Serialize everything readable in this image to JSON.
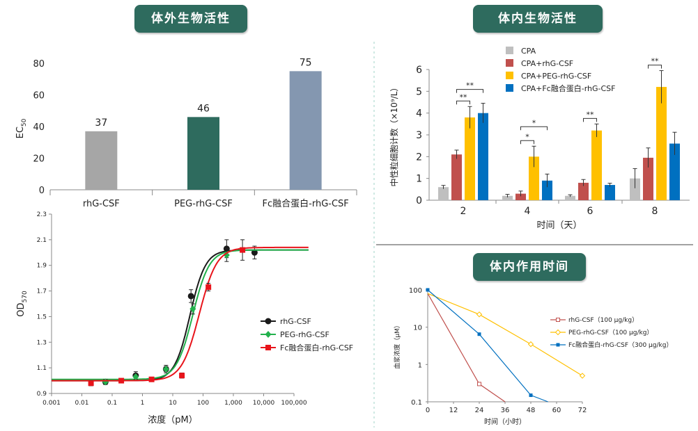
{
  "banners": {
    "in_vitro": "体外生物活性",
    "in_vivo": "体内生物活性",
    "duration": "体内作用时间"
  },
  "colors": {
    "banner": "#2e6b5e",
    "rhG": "#a6a6a6",
    "peg": "#2e6b5e",
    "fc": "#8497b0",
    "cpa_gray": "#bfbfbf",
    "cpa_red": "#c0504d",
    "cpa_yellow": "#ffc000",
    "cpa_blue": "#0070c0"
  },
  "chart_data": [
    {
      "id": "ec50",
      "type": "bar",
      "ylabel_main": "EC",
      "ylabel_sub": "50",
      "ylim": [
        0,
        80
      ],
      "yticks": [
        "0",
        "20",
        "40",
        "60",
        "80"
      ],
      "categories": [
        "rhG-CSF",
        "PEG-rhG-CSF",
        "Fc融合蛋白-rhG-CSF"
      ],
      "values": [
        37,
        46,
        75
      ],
      "value_labels": [
        "37",
        "46",
        "75"
      ]
    },
    {
      "id": "od570",
      "type": "scatter",
      "ylabel_main": "OD",
      "ylabel_sub": "570",
      "xlabel": "浓度（pM）",
      "xscale": "log",
      "xlim": [
        0.001,
        100000
      ],
      "xticks": [
        "0.001",
        "0.01",
        "0.1",
        "1",
        "10",
        "100",
        "1,000",
        "10,000",
        "100,000"
      ],
      "ylim": [
        0.9,
        2.3
      ],
      "yticks": [
        "0.9",
        "1.1",
        "1.3",
        "1.5",
        "1.7",
        "1.9",
        "2.1",
        "2.3"
      ],
      "series": [
        {
          "name": "rhG-CSF",
          "x": [
            0.06,
            0.6,
            6,
            40,
            600,
            5000
          ],
          "y": [
            0.99,
            1.04,
            1.09,
            1.66,
            2.03,
            2.0
          ],
          "err": [
            0.02,
            0.03,
            0.03,
            0.05,
            0.07,
            0.05
          ],
          "fit": {
            "bottom": 1.0,
            "top": 2.02,
            "ec50": 37,
            "hill": 1.7
          }
        },
        {
          "name": "PEG-rhG-CSF",
          "x": [
            0.06,
            0.6,
            6,
            46,
            600
          ],
          "y": [
            0.99,
            1.03,
            1.09,
            1.56,
            1.98
          ],
          "err": [
            0.02,
            0.02,
            0.02,
            0.04,
            0.05
          ],
          "fit": {
            "bottom": 1.01,
            "top": 2.02,
            "ec50": 46,
            "hill": 1.6
          }
        },
        {
          "name": "Fc融合蛋白-rhG-CSF",
          "x": [
            0.02,
            0.2,
            2,
            20,
            150,
            2000
          ],
          "y": [
            0.98,
            1.0,
            1.01,
            1.04,
            1.73,
            2.02
          ],
          "err": [
            0.02,
            0.01,
            0.01,
            0.02,
            0.03,
            0.08
          ],
          "fit": {
            "bottom": 1.0,
            "top": 2.04,
            "ec50": 75,
            "hill": 1.5
          }
        }
      ]
    },
    {
      "id": "neutrophil",
      "type": "bar",
      "ylabel": "中性粒细胞计数（×10⁹/L）",
      "xlabel": "时间（天）",
      "ylim": [
        0,
        6
      ],
      "yticks": [
        "0",
        "1",
        "2",
        "3",
        "4",
        "5",
        "6"
      ],
      "categories": [
        "2",
        "4",
        "6",
        "8"
      ],
      "series": [
        {
          "name": "CPA",
          "values": [
            0.6,
            0.2,
            0.2,
            1.0
          ],
          "err": [
            0.08,
            0.07,
            0.05,
            0.45
          ]
        },
        {
          "name": "CPA+rhG-CSF",
          "values": [
            2.1,
            0.3,
            0.8,
            1.95
          ],
          "err": [
            0.2,
            0.12,
            0.15,
            0.45
          ]
        },
        {
          "name": "CPA+PEG-rhG-CSF",
          "values": [
            3.8,
            2.0,
            3.2,
            5.2
          ],
          "err": [
            0.5,
            0.48,
            0.3,
            0.75
          ]
        },
        {
          "name": "CPA+Fc融合蛋白-rhG-CSF",
          "values": [
            4.0,
            0.9,
            0.7,
            2.6
          ],
          "err": [
            0.45,
            0.3,
            0.08,
            0.52
          ]
        }
      ],
      "significance": [
        "**",
        "**",
        "*",
        "*",
        "**",
        "**"
      ]
    },
    {
      "id": "pk",
      "type": "line",
      "ylabel": "血浆浓度（μM）",
      "xlabel": "时间（小时）",
      "xlim": [
        0,
        72
      ],
      "xticks": [
        "0",
        "12",
        "24",
        "36",
        "48",
        "60",
        "72"
      ],
      "yscale": "log",
      "ylim": [
        0.1,
        100
      ],
      "yticks": [
        "0.1",
        "1",
        "10",
        "100"
      ],
      "series": [
        {
          "name": "rhG-CSF（100 μg/kg）",
          "x": [
            0,
            24,
            36
          ],
          "y": [
            80,
            0.3,
            0.1
          ]
        },
        {
          "name": "PEG-rhG-CSF（100 μg/kg）",
          "x": [
            0,
            24,
            48,
            72
          ],
          "y": [
            80,
            22,
            3.5,
            0.5
          ]
        },
        {
          "name": "Fc融合蛋白-rhG-CSF（300 μg/kg）",
          "x": [
            0,
            24,
            48,
            56
          ],
          "y": [
            100,
            6.5,
            0.15,
            0.1
          ]
        }
      ]
    }
  ]
}
